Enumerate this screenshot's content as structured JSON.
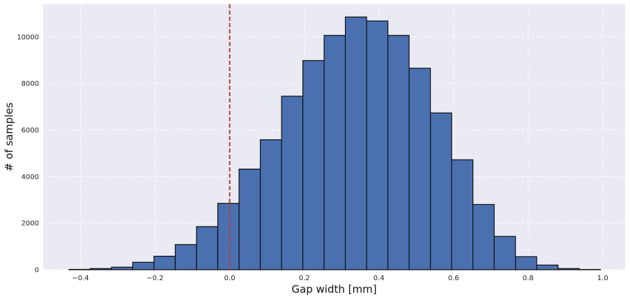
{
  "chart_data": {
    "type": "bar",
    "xlabel": "Gap width [mm]",
    "ylabel": "# of samples",
    "xlim": [
      -0.5,
      1.06
    ],
    "ylim": [
      0,
      11400
    ],
    "x_ticks": [
      {
        "value": -0.4,
        "label": "−0.4"
      },
      {
        "value": -0.2,
        "label": "−0.2"
      },
      {
        "value": 0.0,
        "label": "0.0"
      },
      {
        "value": 0.2,
        "label": "0.2"
      },
      {
        "value": 0.4,
        "label": "0.4"
      },
      {
        "value": 0.6,
        "label": "0.6"
      },
      {
        "value": 0.8,
        "label": "0.8"
      },
      {
        "value": 1.0,
        "label": "1.0"
      }
    ],
    "y_ticks": [
      {
        "value": 0,
        "label": "0"
      },
      {
        "value": 2000,
        "label": "2000"
      },
      {
        "value": 4000,
        "label": "4000"
      },
      {
        "value": 6000,
        "label": "6000"
      },
      {
        "value": 8000,
        "label": "8000"
      },
      {
        "value": 10000,
        "label": "10000"
      }
    ],
    "bin_width": 0.057,
    "bins": [
      {
        "left": -0.431,
        "count": 15
      },
      {
        "left": -0.374,
        "count": 50
      },
      {
        "left": -0.317,
        "count": 110
      },
      {
        "left": -0.26,
        "count": 320
      },
      {
        "left": -0.203,
        "count": 580
      },
      {
        "left": -0.146,
        "count": 1080
      },
      {
        "left": -0.089,
        "count": 1850
      },
      {
        "left": -0.032,
        "count": 2850
      },
      {
        "left": 0.025,
        "count": 4320
      },
      {
        "left": 0.082,
        "count": 5580
      },
      {
        "left": 0.139,
        "count": 7450
      },
      {
        "left": 0.196,
        "count": 8980
      },
      {
        "left": 0.253,
        "count": 10060
      },
      {
        "left": 0.31,
        "count": 10850
      },
      {
        "left": 0.367,
        "count": 10680
      },
      {
        "left": 0.424,
        "count": 10060
      },
      {
        "left": 0.481,
        "count": 8650
      },
      {
        "left": 0.538,
        "count": 6730
      },
      {
        "left": 0.595,
        "count": 4720
      },
      {
        "left": 0.652,
        "count": 2800
      },
      {
        "left": 0.709,
        "count": 1430
      },
      {
        "left": 0.766,
        "count": 560
      },
      {
        "left": 0.823,
        "count": 200
      },
      {
        "left": 0.88,
        "count": 50
      },
      {
        "left": 0.937,
        "count": 10
      }
    ],
    "reference_line": {
      "x": 0.0,
      "color": "#b0413e",
      "style": "dashed"
    },
    "grid": true,
    "background_color": "#eaeaf2",
    "bar_color": "#4a70b0"
  }
}
